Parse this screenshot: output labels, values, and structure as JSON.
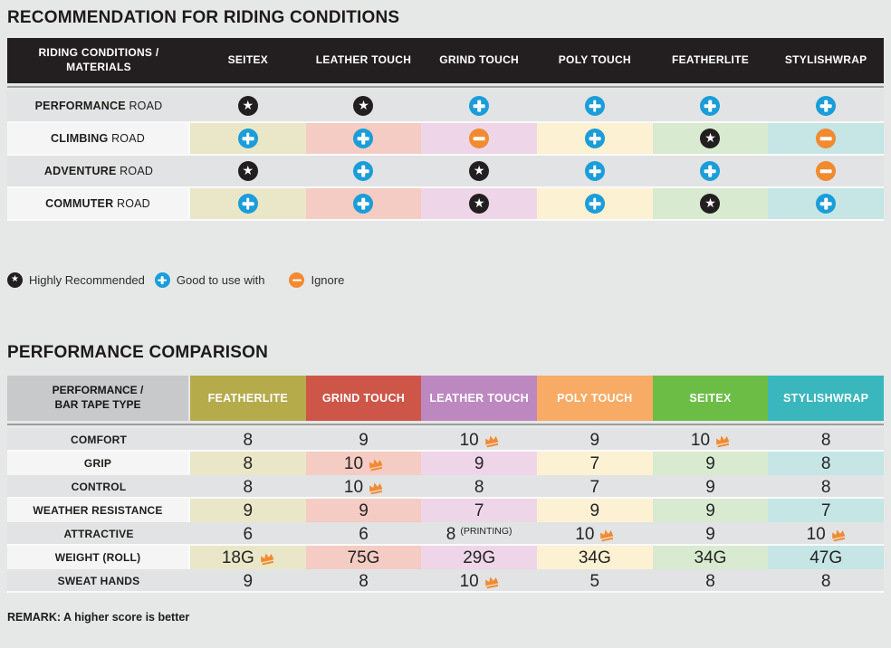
{
  "colors": {
    "page_bg": "#e6e7e7",
    "table1_header_bg": "#231f20",
    "plain_row_bg": "#e2e3e4",
    "label_cell_bg": "#f5f5f6",
    "corner_header_bg": "#c8c9ca",
    "divider": "#9c9d9d"
  },
  "icons": {
    "star_color": "#231f20",
    "plus_color": "#1b9dd9",
    "minus_color": "#f28a30",
    "crown_color": "#f28a30",
    "star_glyph": "★"
  },
  "chart_data": [
    {
      "type": "table",
      "title": "RECOMMENDATION FOR RIDING CONDITIONS",
      "corner_label": "RIDING CONDITIONS / MATERIALS",
      "columns": [
        "SEITEX",
        "LEATHER TOUCH",
        "GRIND TOUCH",
        "POLY TOUCH",
        "FEATHERLITE",
        "STYLISHWRAP"
      ],
      "column_tints": [
        "#e9e7c8",
        "#f4ccc3",
        "#eed6e8",
        "#fdf1d3",
        "#d8ead0",
        "#c5e6e5"
      ],
      "rows": [
        {
          "label_strong": "PERFORMANCE",
          "label_normal": "ROAD",
          "tinted": false,
          "cells": [
            "star",
            "star",
            "plus",
            "plus",
            "plus",
            "plus"
          ]
        },
        {
          "label_strong": "CLIMBING",
          "label_normal": "ROAD",
          "tinted": true,
          "cells": [
            "plus",
            "plus",
            "minus",
            "plus",
            "star",
            "minus"
          ]
        },
        {
          "label_strong": "ADVENTURE",
          "label_normal": "ROAD",
          "tinted": false,
          "cells": [
            "star",
            "plus",
            "star",
            "plus",
            "plus",
            "minus"
          ]
        },
        {
          "label_strong": "COMMUTER",
          "label_normal": "ROAD",
          "tinted": true,
          "cells": [
            "plus",
            "plus",
            "star",
            "plus",
            "star",
            "plus"
          ]
        }
      ],
      "legend": [
        {
          "icon": "star",
          "label": "Highly Recommended"
        },
        {
          "icon": "plus",
          "label": "Good to use with"
        },
        {
          "icon": "minus",
          "label": "Ignore"
        }
      ]
    },
    {
      "type": "table",
      "title": "PERFORMANCE COMPARISON",
      "corner_label": "PERFORMANCE / BAR TAPE TYPE",
      "columns": [
        {
          "label": "FEATHERLITE",
          "color": "#b5ab4b",
          "tint": "#e9e7c8"
        },
        {
          "label": "GRIND TOUCH",
          "color": "#cd5649",
          "tint": "#f4ccc3"
        },
        {
          "label": "LEATHER TOUCH",
          "color": "#bd88c0",
          "tint": "#eed6e8"
        },
        {
          "label": "POLY TOUCH",
          "color": "#f8ab64",
          "tint": "#fdf1d3"
        },
        {
          "label": "SEITEX",
          "color": "#6cbd45",
          "tint": "#d8ead0"
        },
        {
          "label": "STYLISHWRAP",
          "color": "#39b7bd",
          "tint": "#c5e6e5"
        }
      ],
      "rows": [
        {
          "label": "COMFORT",
          "tinted": false,
          "cells": [
            {
              "value": "8"
            },
            {
              "value": "9"
            },
            {
              "value": "10",
              "crown": true
            },
            {
              "value": "9"
            },
            {
              "value": "10",
              "crown": true
            },
            {
              "value": "8"
            }
          ]
        },
        {
          "label": "GRIP",
          "tinted": true,
          "cells": [
            {
              "value": "8"
            },
            {
              "value": "10",
              "crown": true
            },
            {
              "value": "9"
            },
            {
              "value": "7"
            },
            {
              "value": "9"
            },
            {
              "value": "8"
            }
          ]
        },
        {
          "label": "CONTROL",
          "tinted": false,
          "cells": [
            {
              "value": "8"
            },
            {
              "value": "10",
              "crown": true
            },
            {
              "value": "8"
            },
            {
              "value": "7"
            },
            {
              "value": "9"
            },
            {
              "value": "8"
            }
          ]
        },
        {
          "label": "WEATHER RESISTANCE",
          "tinted": true,
          "cells": [
            {
              "value": "9"
            },
            {
              "value": "9"
            },
            {
              "value": "7"
            },
            {
              "value": "9"
            },
            {
              "value": "9"
            },
            {
              "value": "7"
            }
          ]
        },
        {
          "label": "ATTRACTIVE",
          "tinted": false,
          "cells": [
            {
              "value": "6"
            },
            {
              "value": "6"
            },
            {
              "value": "8",
              "note": "(PRINTING)"
            },
            {
              "value": "10",
              "crown": true
            },
            {
              "value": "9"
            },
            {
              "value": "10",
              "crown": true
            }
          ]
        },
        {
          "label": "WEIGHT (ROLL)",
          "tinted": true,
          "cells": [
            {
              "value": "18G",
              "crown": true
            },
            {
              "value": "75G"
            },
            {
              "value": "29G"
            },
            {
              "value": "34G"
            },
            {
              "value": "34G"
            },
            {
              "value": "47G"
            }
          ]
        },
        {
          "label": "SWEAT HANDS",
          "tinted": false,
          "cells": [
            {
              "value": "9"
            },
            {
              "value": "8"
            },
            {
              "value": "10",
              "crown": true
            },
            {
              "value": "5"
            },
            {
              "value": "8"
            },
            {
              "value": "8"
            }
          ]
        }
      ],
      "remark": "REMARK: A higher score is better"
    }
  ]
}
